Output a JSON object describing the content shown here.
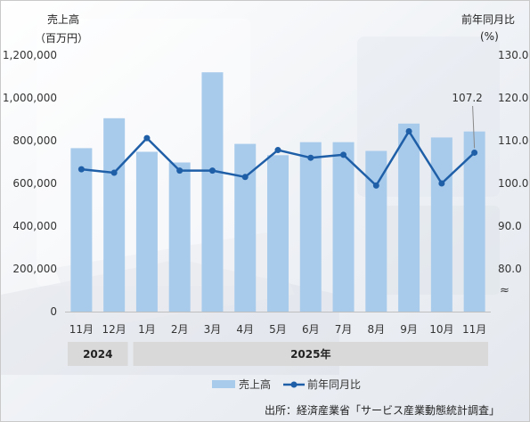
{
  "chart_data": {
    "type": "bar+line",
    "categories": [
      "11月",
      "12月",
      "1月",
      "2月",
      "3月",
      "4月",
      "5月",
      "6月",
      "7月",
      "8月",
      "9月",
      "10月",
      "11月"
    ],
    "year_groups": [
      {
        "label": "2024",
        "span": [
          0,
          1
        ]
      },
      {
        "label": "2025年",
        "span": [
          2,
          12
        ]
      }
    ],
    "series": [
      {
        "name": "売上高",
        "type": "bar",
        "axis": "left",
        "color": "#a9cbeb",
        "values": [
          765000,
          905000,
          748000,
          698000,
          1120000,
          785000,
          732000,
          793000,
          793000,
          752000,
          880000,
          815000,
          843000
        ]
      },
      {
        "name": "前年同月比",
        "type": "line",
        "axis": "right",
        "color": "#1f5fa8",
        "values": [
          103.3,
          102.5,
          110.6,
          103.0,
          103.0,
          101.5,
          107.8,
          106.0,
          106.7,
          99.5,
          112.2,
          100.0,
          107.2
        ]
      }
    ],
    "left_axis": {
      "title_line1": "売上高",
      "title_line2": "（百万円）",
      "ylim": [
        0,
        1200000
      ],
      "ticks": [
        {
          "v": 0,
          "label": "0"
        },
        {
          "v": 200000,
          "label": "200,000"
        },
        {
          "v": 400000,
          "label": "400,000"
        },
        {
          "v": 600000,
          "label": "600,000"
        },
        {
          "v": 800000,
          "label": "800,000"
        },
        {
          "v": 1000000,
          "label": "1,000,000"
        },
        {
          "v": 1200000,
          "label": "1,200,000"
        }
      ]
    },
    "right_axis": {
      "title_line1": "前年同月比",
      "title_line2": "(%)",
      "ylim": [
        70,
        130
      ],
      "ticks": [
        {
          "v": 80,
          "label": "80.0"
        },
        {
          "v": 90,
          "label": "90.0"
        },
        {
          "v": 100,
          "label": "100.0"
        },
        {
          "v": 110,
          "label": "110.0"
        },
        {
          "v": 120,
          "label": "120.0"
        },
        {
          "v": 130,
          "label": "130.0"
        }
      ],
      "break_symbol": "≈"
    },
    "annotation": {
      "label": "107.2",
      "index": 12
    },
    "legend": {
      "placement": "bottom-center",
      "items": [
        "売上高",
        "前年同月比"
      ]
    },
    "grid": false
  },
  "source_note": "出所：経済産業省「サービス産業動態統計調査」"
}
